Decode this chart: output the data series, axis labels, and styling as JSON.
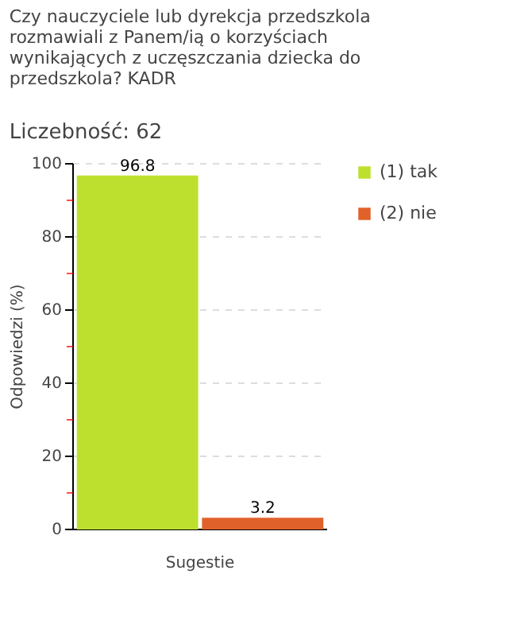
{
  "chart_data": {
    "type": "bar",
    "title": "Czy nauczyciele lub dyrekcja przedszkola rozmawiali z Panem/ią o korzyściach wynikających z uczęszczania dziecka do przedszkola?  KADR",
    "subtitle": "Liczebność: 62",
    "ylabel": "Odpowiedzi (%)",
    "xlabel": "Sugestie",
    "categories": [
      null,
      null
    ],
    "stacked": true,
    "series": [
      {
        "name": "(1) tak",
        "color": "#bde02f",
        "values": [
          96.8,
          null
        ]
      },
      {
        "name": "(2) nie",
        "color": "#e0622a",
        "values": [
          null,
          3.2
        ]
      }
    ],
    "ylim": [
      0,
      100
    ],
    "yticks": [
      0,
      {
        "value": 10,
        "label": null
      },
      20,
      {
        "value": 30,
        "label": null
      },
      40,
      {
        "value": 50,
        "label": null
      },
      60,
      {
        "value": 70,
        "label": null
      },
      80,
      {
        "value": 90,
        "label": null
      },
      100
    ],
    "grid": "y",
    "legend": "top right",
    "data_labels": true
  }
}
